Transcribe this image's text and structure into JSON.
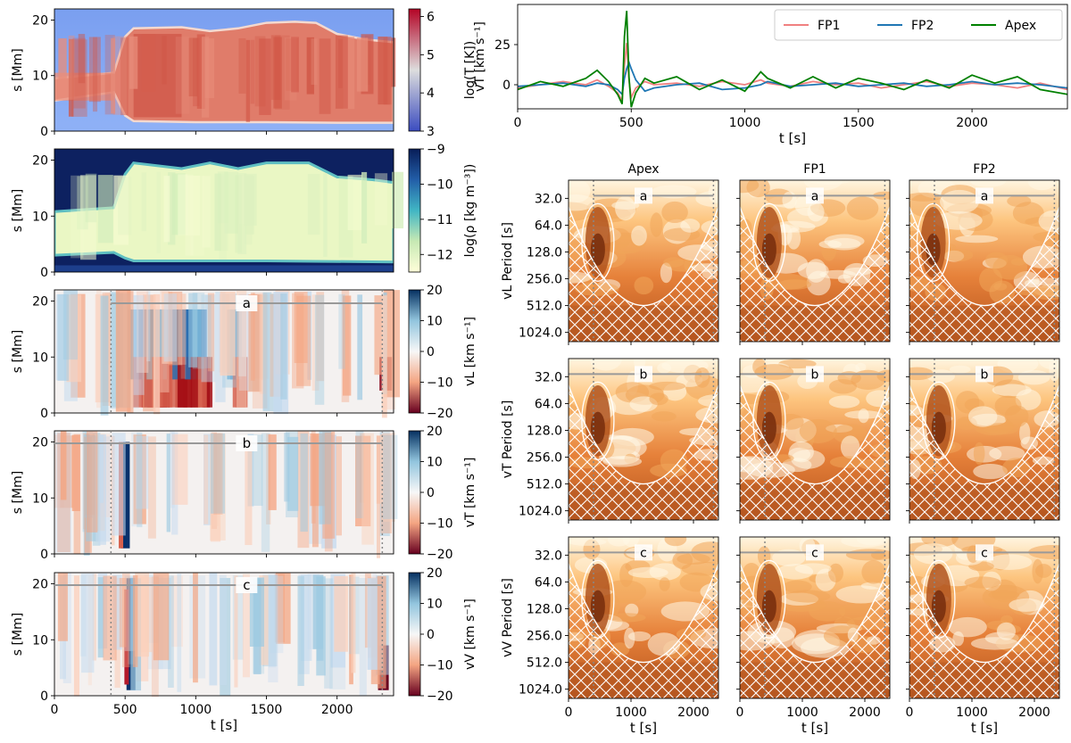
{
  "chart_data": {
    "type": "figure",
    "left_panels": {
      "ylabel": "s [Mm]",
      "xlabel": "t [s]",
      "xlim": [
        0,
        2400
      ],
      "ylim": [
        0,
        22
      ],
      "xticks": [
        "0",
        "500",
        "1000",
        "1500",
        "2000"
      ],
      "yticks": [
        "0",
        "10",
        "20"
      ],
      "window_start_s": 400,
      "window_end_s": 2320,
      "panels": [
        {
          "name": "temperature",
          "type": "heatmap",
          "cbar_label": "log(T [K])",
          "cbar_ticks": [
            "3",
            "4",
            "5",
            "6"
          ],
          "vmin": 3,
          "vmax": 6.2,
          "colormap": "coolwarm"
        },
        {
          "name": "density",
          "type": "heatmap",
          "cbar_label": "log(ρ [kg m⁻³])",
          "cbar_ticks": [
            "−9",
            "−10",
            "−11",
            "−12"
          ],
          "vmin": -12.5,
          "vmax": -9,
          "colormap": "YlGnBu"
        },
        {
          "name": "vL",
          "type": "heatmap",
          "cbar_label": "vL [km s⁻¹]",
          "cbar_ticks": [
            "20",
            "10",
            "0",
            "−10",
            "−20"
          ],
          "vmin": -20,
          "vmax": 20,
          "colormap": "RdBu",
          "window_label": "a"
        },
        {
          "name": "vT",
          "type": "heatmap",
          "cbar_label": "vT [km s⁻¹]",
          "cbar_ticks": [
            "20",
            "10",
            "0",
            "−10",
            "−20"
          ],
          "vmin": -20,
          "vmax": 20,
          "colormap": "RdBu",
          "window_label": "b"
        },
        {
          "name": "vV",
          "type": "heatmap",
          "cbar_label": "vV [km s⁻¹]",
          "cbar_ticks": [
            "20",
            "10",
            "0",
            "−10",
            "−20"
          ],
          "vmin": -20,
          "vmax": 20,
          "colormap": "RdBu",
          "window_label": "c"
        }
      ]
    },
    "timeseries": {
      "type": "line",
      "ylabel": "vT [km s⁻¹]",
      "xlabel": "t [s]",
      "xlim": [
        0,
        2420
      ],
      "ylim": [
        -15,
        50
      ],
      "xticks": [
        "0",
        "500",
        "1000",
        "1500",
        "2000"
      ],
      "yticks": [
        "25",
        "0"
      ],
      "legend_position": "top-right",
      "x": [
        0,
        100,
        200,
        300,
        350,
        400,
        440,
        460,
        470,
        480,
        490,
        500,
        520,
        560,
        600,
        700,
        800,
        900,
        1000,
        1070,
        1100,
        1200,
        1300,
        1400,
        1500,
        1600,
        1700,
        1800,
        1900,
        2000,
        2100,
        2200,
        2300,
        2420
      ],
      "series": [
        {
          "name": "FP1",
          "color": "#f08080",
          "values": [
            -2,
            0,
            2,
            0,
            3,
            -1,
            -5,
            -10,
            12,
            26,
            3,
            -8,
            -2,
            2,
            0,
            1,
            -1,
            2,
            0,
            3,
            1,
            -1,
            2,
            0,
            1,
            -2,
            0,
            2,
            -1,
            1,
            0,
            -2,
            1,
            -3
          ]
        },
        {
          "name": "FP2",
          "color": "#1f77b4",
          "values": [
            -1,
            0,
            1,
            -1,
            1,
            0,
            -3,
            -6,
            4,
            10,
            14,
            10,
            3,
            -4,
            -2,
            0,
            1,
            -3,
            -2,
            0,
            2,
            -1,
            0,
            1,
            -1,
            0,
            1,
            -1,
            0,
            2,
            0,
            1,
            0,
            -2
          ]
        },
        {
          "name": "Apex",
          "color": "#008000",
          "values": [
            -3,
            2,
            -1,
            4,
            9,
            2,
            -6,
            -12,
            30,
            46,
            5,
            -14,
            -5,
            4,
            1,
            5,
            -3,
            3,
            -4,
            8,
            4,
            -2,
            5,
            -2,
            4,
            1,
            -3,
            3,
            -2,
            6,
            1,
            5,
            -3,
            -6
          ]
        }
      ]
    },
    "wavelet_panels": {
      "type": "heatmap",
      "columns": [
        "Apex",
        "FP1",
        "FP2"
      ],
      "rows": [
        "vL",
        "vT",
        "vV"
      ],
      "row_ylabels": [
        "vL Period [s]",
        "vT Period [s]",
        "vV Period [s]"
      ],
      "row_window_labels": [
        "a",
        "b",
        "c"
      ],
      "xlabel": "t [s]",
      "xticks": [
        "0",
        "1000",
        "2000"
      ],
      "yticks": [
        "32.0",
        "64.0",
        "128.0",
        "256.0",
        "512.0",
        "1024.0"
      ],
      "period_range_s": [
        20,
        1300
      ],
      "xlim": [
        0,
        2400
      ]
    }
  }
}
